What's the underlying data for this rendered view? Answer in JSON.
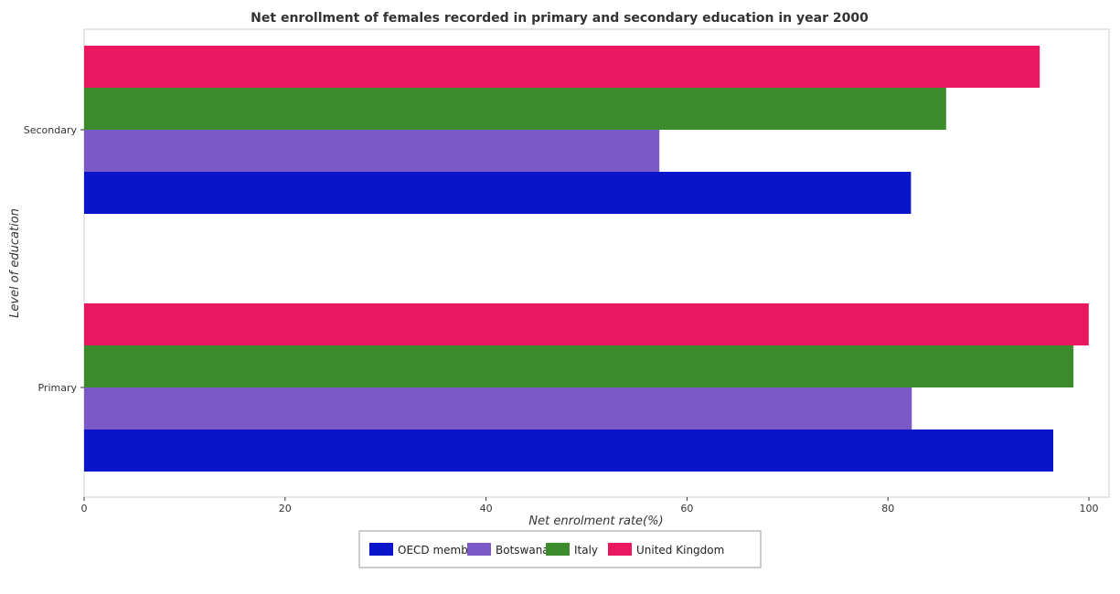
{
  "chart_data": {
    "type": "bar",
    "orientation": "horizontal",
    "title": "Net enrollment of females recorded in primary and secondary education in year 2000",
    "xlabel": "Net enrolment rate(%)",
    "ylabel": "Level of education",
    "xlim": [
      0,
      102
    ],
    "x_ticks": [
      0,
      20,
      40,
      60,
      80,
      100
    ],
    "x_tick_labels": [
      "0",
      "20",
      "40",
      "60",
      "80",
      "100"
    ],
    "categories": [
      "Primary",
      "Secondary"
    ],
    "series": [
      {
        "name": "OECD members",
        "color": "#0a14c8",
        "values": [
          96.45,
          82.29
        ]
      },
      {
        "name": "Botswana",
        "color": "#7b59c7",
        "values": [
          82.37,
          57.25
        ]
      },
      {
        "name": "Italy",
        "color": "#3c8c2e",
        "values": [
          98.46,
          85.79
        ]
      },
      {
        "name": "United Kingdom",
        "color": "#e8175f",
        "values": [
          99.98,
          95.1
        ]
      }
    ],
    "legend_position": "bottom-center",
    "grid": false
  }
}
